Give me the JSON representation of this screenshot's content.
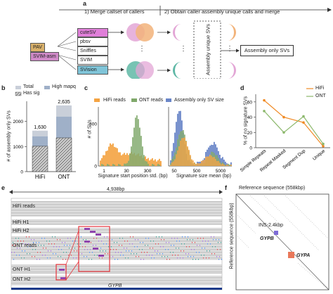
{
  "panel_labels": {
    "a": "a",
    "b": "b",
    "c": "c",
    "d": "d",
    "e": "e",
    "f": "f"
  },
  "panel_a": {
    "step1": "1) Merge callset of callers",
    "step2": "2) Obtain caller assembly unique calls and merge",
    "pipelines": [
      {
        "label": "PAV",
        "color": "#d9b16b"
      },
      {
        "label": "SVIM-asm",
        "color": "#d08ac8"
      }
    ],
    "tools": [
      {
        "label": "cuteSV",
        "color": "#e07fd9"
      },
      {
        "label": "pbsv",
        "color": "#ffffff"
      },
      {
        "label": "Sniffles",
        "color": "#ffffff"
      },
      {
        "label": "SVIM",
        "color": "#ffffff"
      },
      {
        "label": "SVision",
        "color": "#7fc4d8"
      }
    ],
    "dots": "⋮",
    "assembly_unique_svs": "Assembly unique SVs",
    "assembly_only_svs": "Assembly only SVs",
    "colors": {
      "orange": "#f2b37a",
      "pink": "#e3a6d6",
      "teal": "#5fb8a6"
    }
  },
  "panel_b": {
    "legend": {
      "total": "Total",
      "high_mapq": "High mapq",
      "has_sig": "Has sig"
    },
    "ylabel": "# of assembly only SVs",
    "colors": {
      "total": "#c9cfd9",
      "high_mapq": "#9fb0c8",
      "has_sig": "#cccccc"
    }
  },
  "panel_c": {
    "legend": {
      "hifi": "HiFi reads",
      "ont": "ONT reads",
      "asm": "Assembly only SV size"
    },
    "ylabel": "# of SVs",
    "xlabel_left": "Signature start position std. (bp)",
    "xlabel_right": "Signature size mean (bp)",
    "colors": {
      "hifi": "#f4a342",
      "ont": "#7fa86a",
      "asm": "#6a86c8"
    }
  },
  "panel_d": {
    "ylabel": "% of no signature SVs",
    "legend": {
      "hifi": "HiFi",
      "ont": "ONT"
    },
    "colors": {
      "hifi": "#f08a24",
      "ont": "#8cb86c"
    }
  },
  "panel_e": {
    "scale": "4,938bp",
    "tracks": [
      "HiFi reads",
      "HiFi H1",
      "HiFi H2",
      "ONT reads",
      "ONT H1",
      "ONT H2"
    ],
    "gene": "GYPB"
  },
  "panel_f": {
    "xlabel": "Reference sequence (558kbp)",
    "ylabel": "Reference sequence (558kbp)",
    "ins_label": "INS-2.4kbp",
    "gene1": "GYPB",
    "gene2": "GYPA",
    "colors": {
      "gypb": "#7d6bd6",
      "gypa": "#e9785a"
    }
  },
  "chart_data": [
    {
      "type": "bar",
      "panel": "b",
      "categories": [
        "HiFi",
        "ONT"
      ],
      "series": [
        {
          "name": "Total",
          "values": [
            1630,
            2635
          ]
        }
      ],
      "data_labels": [
        "1,630",
        "2,635"
      ],
      "ylabel": "# of assembly only SVs",
      "yticks": [
        "0",
        "1000",
        "2000"
      ],
      "ylim": [
        0,
        2800
      ]
    },
    {
      "type": "bar",
      "panel": "c-left",
      "series": [
        {
          "name": "HiFi reads"
        },
        {
          "name": "ONT reads"
        }
      ],
      "xlabel": "Signature start position std. (bp)",
      "ylabel": "# of SVs",
      "xticks": [
        "1",
        "30",
        "300"
      ],
      "yticks": [
        "0",
        "300"
      ],
      "log_x": true
    },
    {
      "type": "bar",
      "panel": "c-right",
      "series": [
        {
          "name": "HiFi reads"
        },
        {
          "name": "ONT reads"
        },
        {
          "name": "Assembly only SV size"
        }
      ],
      "xlabel": "Signature size mean (bp)",
      "xticks": [
        "50",
        "500",
        "5000"
      ],
      "log_x": true
    },
    {
      "type": "line",
      "panel": "d",
      "categories": [
        "Simple Repeats",
        "Repeat Masked",
        "Segment Dup",
        "Unique"
      ],
      "series": [
        {
          "name": "HiFi",
          "values": [
            62,
            40,
            33,
            2
          ]
        },
        {
          "name": "ONT",
          "values": [
            48,
            20,
            41,
            5
          ]
        }
      ],
      "ylabel": "% of no signature SVs",
      "yticks": [
        "0",
        "20",
        "40",
        "60"
      ],
      "ylim": [
        0,
        70
      ]
    }
  ]
}
